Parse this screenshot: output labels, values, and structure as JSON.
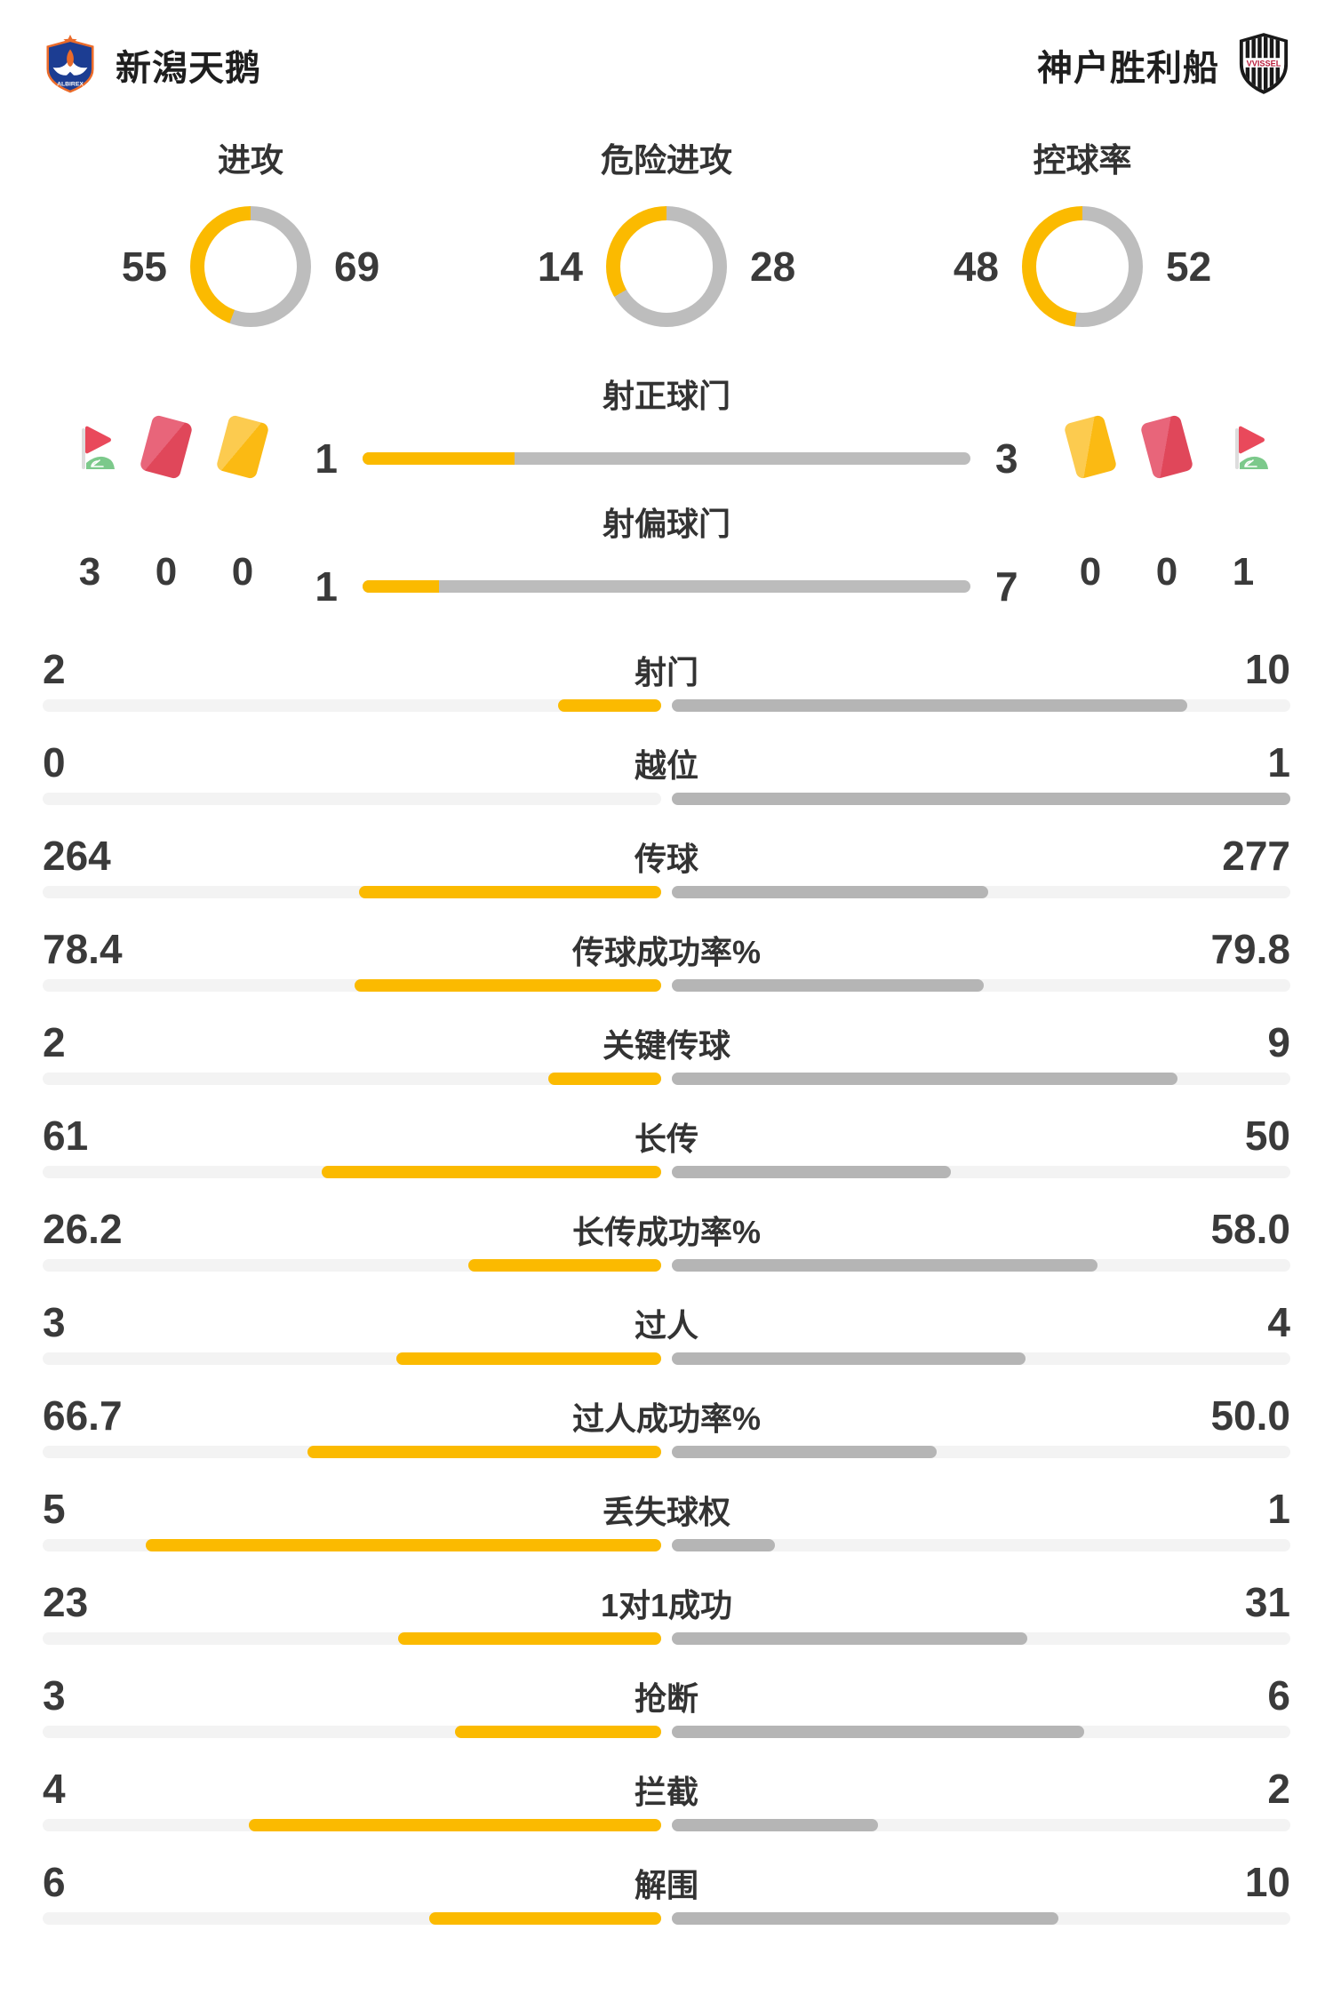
{
  "header": {
    "home_team": "新潟天鹅",
    "away_team": "神户胜利船",
    "home_logo": "albirex-niigata-crest",
    "away_logo": "vissel-kobe-crest"
  },
  "colors": {
    "home_accent": "#FBBA00",
    "away_bar": "#B5B5B5",
    "away_donut": "#BDBDBD",
    "bar_track": "#F3F3F3",
    "text": "#3A3A3A",
    "red_card": "#E0475A",
    "yellow_card": "#FBBA13",
    "corner_flag_green": "#7CC98B"
  },
  "overview": {
    "donuts": [
      {
        "label": "进攻",
        "home": 55,
        "away": 69
      },
      {
        "label": "危险进攻",
        "home": 14,
        "away": 28
      },
      {
        "label": "控球率",
        "home": 48,
        "away": 52
      }
    ]
  },
  "shots": {
    "rows": [
      {
        "label": "射正球门",
        "home": 1,
        "away": 3
      },
      {
        "label": "射偏球门",
        "home": 1,
        "away": 7
      }
    ]
  },
  "discipline": {
    "home": {
      "items": [
        {
          "icon": "corner-flag-icon",
          "value": "3"
        },
        {
          "icon": "red-card-icon",
          "value": "0"
        },
        {
          "icon": "yellow-card-icon",
          "value": "0"
        }
      ]
    },
    "away": {
      "items": [
        {
          "icon": "yellow-card-icon",
          "value": "0"
        },
        {
          "icon": "red-card-icon",
          "value": "0"
        },
        {
          "icon": "corner-flag-icon",
          "value": "1"
        }
      ]
    }
  },
  "stats": {
    "rows": [
      {
        "label": "射门",
        "home": "2",
        "away": "10"
      },
      {
        "label": "越位",
        "home": "0",
        "away": "1"
      },
      {
        "label": "传球",
        "home": "264",
        "away": "277"
      },
      {
        "label": "传球成功率%",
        "home": "78.4",
        "away": "79.8"
      },
      {
        "label": "关键传球",
        "home": "2",
        "away": "9"
      },
      {
        "label": "长传",
        "home": "61",
        "away": "50"
      },
      {
        "label": "长传成功率%",
        "home": "26.2",
        "away": "58.0"
      },
      {
        "label": "过人",
        "home": "3",
        "away": "4"
      },
      {
        "label": "过人成功率%",
        "home": "66.7",
        "away": "50.0"
      },
      {
        "label": "丢失球权",
        "home": "5",
        "away": "1"
      },
      {
        "label": "1对1成功",
        "home": "23",
        "away": "31"
      },
      {
        "label": "抢断",
        "home": "3",
        "away": "6"
      },
      {
        "label": "拦截",
        "home": "4",
        "away": "2"
      },
      {
        "label": "解围",
        "home": "6",
        "away": "10"
      }
    ]
  },
  "chart_data": {
    "type": "bar",
    "title": "新潟天鹅 vs 神户胜利船 比赛统计",
    "teams": [
      "新潟天鹅",
      "神户胜利船"
    ],
    "donut_charts": [
      {
        "type": "pie",
        "title": "进攻",
        "values": [
          55,
          69
        ]
      },
      {
        "type": "pie",
        "title": "危险进攻",
        "values": [
          14,
          28
        ]
      },
      {
        "type": "pie",
        "title": "控球率",
        "values": [
          48,
          52
        ]
      }
    ],
    "categories": [
      "射正球门",
      "射偏球门",
      "角球",
      "红牌",
      "黄牌",
      "射门",
      "越位",
      "传球",
      "传球成功率%",
      "关键传球",
      "长传",
      "长传成功率%",
      "过人",
      "过人成功率%",
      "丢失球权",
      "1对1成功",
      "抢断",
      "拦截",
      "解围"
    ],
    "series": [
      {
        "name": "新潟天鹅",
        "values": [
          1,
          1,
          3,
          0,
          0,
          2,
          0,
          264,
          78.4,
          2,
          61,
          26.2,
          3,
          66.7,
          5,
          23,
          3,
          4,
          6
        ]
      },
      {
        "name": "神户胜利船",
        "values": [
          3,
          7,
          1,
          0,
          0,
          10,
          1,
          277,
          79.8,
          9,
          50,
          58.0,
          4,
          50.0,
          1,
          31,
          6,
          2,
          10
        ]
      }
    ],
    "legend_position": "top",
    "grid": false
  }
}
